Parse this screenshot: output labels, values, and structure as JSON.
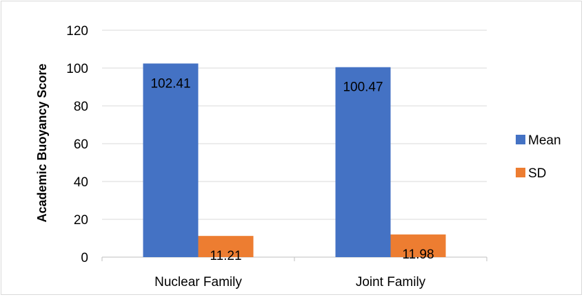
{
  "chart_data": {
    "type": "bar",
    "title": "",
    "xlabel": "",
    "ylabel": "Academic Buoyancy Score",
    "categories": [
      "Nuclear Family",
      "Joint Family"
    ],
    "series": [
      {
        "name": "Mean",
        "values": [
          102.41,
          100.47
        ],
        "labels": [
          "102.41",
          "100.47"
        ],
        "color": "#4472c4"
      },
      {
        "name": "SD",
        "values": [
          11.21,
          11.98
        ],
        "labels": [
          "11.21",
          "11.98"
        ],
        "color": "#ed7d31"
      }
    ],
    "ylim": [
      0,
      120
    ],
    "yticks": [
      0,
      20,
      40,
      60,
      80,
      100,
      120
    ],
    "grid": true,
    "legend_position": "right"
  }
}
